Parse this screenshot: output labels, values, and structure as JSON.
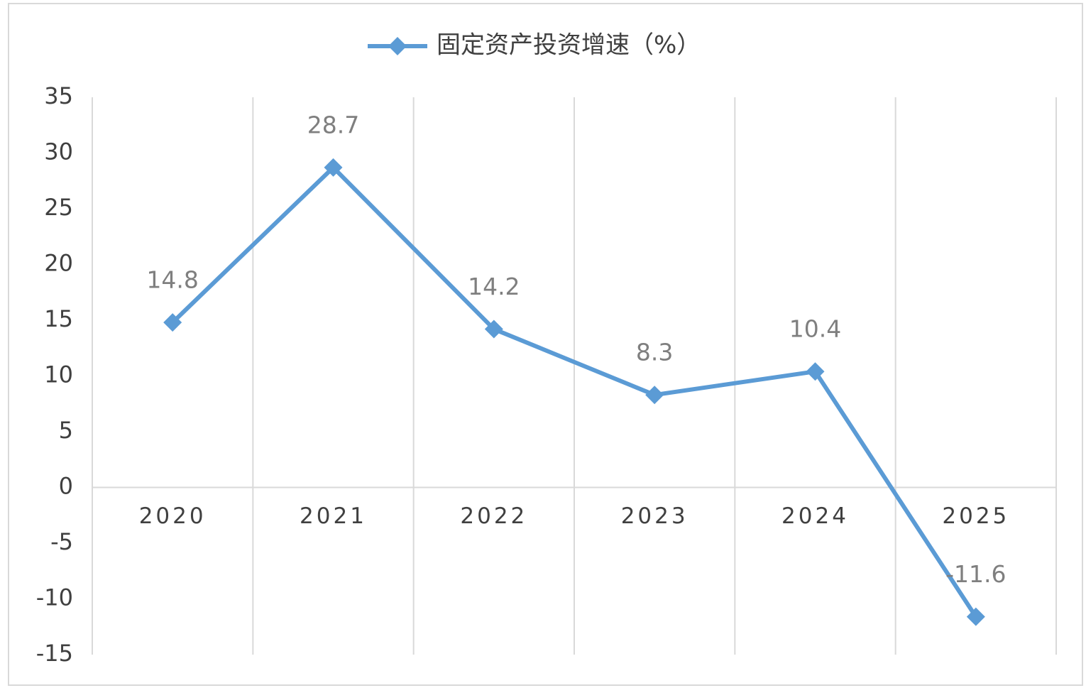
{
  "chart_data": {
    "type": "line",
    "categories": [
      "2020",
      "2021",
      "2022",
      "2023",
      "2024",
      "2025"
    ],
    "series": [
      {
        "name": "固定资产投资增速（%）",
        "color": "#5b9bd5",
        "values": [
          14.8,
          28.7,
          14.2,
          8.3,
          10.4,
          -11.6
        ]
      }
    ],
    "ylim": [
      -15,
      35
    ],
    "yticks": [
      -15,
      -10,
      -5,
      0,
      5,
      10,
      15,
      20,
      25,
      30,
      35
    ],
    "legend": "top",
    "data_labels": true
  }
}
